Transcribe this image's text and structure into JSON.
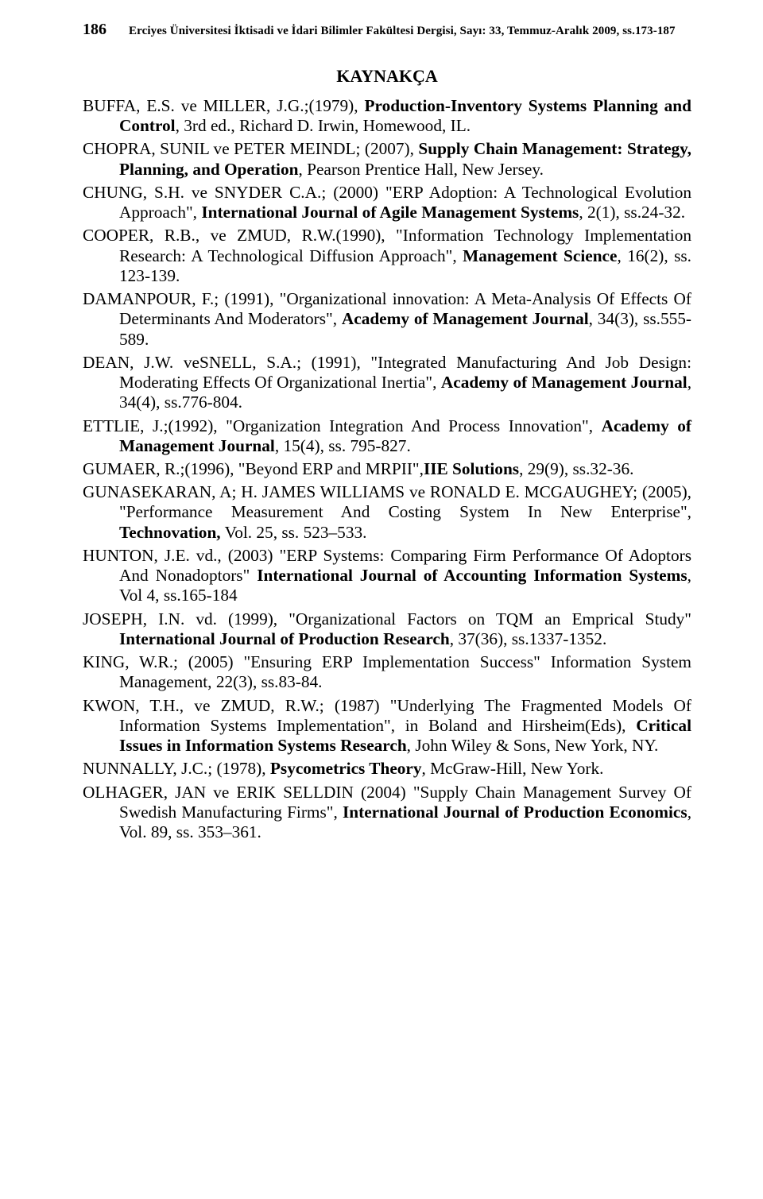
{
  "page_number": "186",
  "journal_header": "Erciyes Üniversitesi İktisadi ve İdari Bilimler Fakültesi Dergisi, Sayı: 33, Temmuz-Aralık 2009, ss.173-187",
  "section_title": "KAYNAKÇA",
  "refs": {
    "r1a": "BUFFA, E.S. ve MILLER, J.G.;(1979), ",
    "r1b": "Production-Inventory Systems Planning and Control",
    "r1c": ", 3rd ed., Richard D. Irwin, Homewood, IL.",
    "r2a": "CHOPRA, SUNIL ve PETER MEINDL; (2007), ",
    "r2b": "Supply Chain Management: Strategy, Planning, and Operation",
    "r2c": ", Pearson Prentice Hall, New Jersey.",
    "r3a": "CHUNG, S.H. ve SNYDER C.A.; (2000) \"ERP Adoption: A Technological Evolution Approach\", ",
    "r3b": "International Journal of Agile Management Systems",
    "r3c": ", 2(1), ss.24-32.",
    "r4a": "COOPER, R.B., ve ZMUD, R.W.(1990), \"Information Technology Implementation Research: A Technological Diffusion Approach\", ",
    "r4b": "Management Science",
    "r4c": ", 16(2), ss. 123-139.",
    "r5a": "DAMANPOUR, F.; (1991), \"Organizational innovation: A Meta-Analysis Of Effects Of Determinants And Moderators\", ",
    "r5b": "Academy of Management Journal",
    "r5c": ", 34(3), ss.555-589.",
    "r6a": "DEAN, J.W. veSNELL, S.A.; (1991), \"Integrated Manufacturing And Job Design: Moderating Effects Of Organizational Inertia\", ",
    "r6b": "Academy of Management Journal",
    "r6c": ", 34(4), ss.776-804.",
    "r7a": "ETTLIE, J.;(1992), \"Organization Integration And Process Innovation\", ",
    "r7b": "Academy of Management Journal",
    "r7c": ", 15(4), ss. 795-827.",
    "r8a": "GUMAER, R.;(1996), \"Beyond ERP and MRPII\",",
    "r8b": "IIE Solutions",
    "r8c": ", 29(9), ss.32-36.",
    "r9a": "GUNASEKARAN, A; H. JAMES WILLIAMS ve RONALD E. MCGAUGHEY; (2005), \"Performance Measurement And Costing System In New Enterprise\", ",
    "r9b": "Technovation,",
    "r9c": " Vol. 25, ss. 523–533.",
    "r10a": "HUNTON, J.E. vd., (2003) \"ERP Systems: Comparing Firm Performance Of Adoptors And Nonadoptors\" ",
    "r10b": "International Journal of Accounting Information Systems",
    "r10c": ", Vol 4, ss.165-184",
    "r11a": "JOSEPH, I.N. vd. (1999), \"Organizational Factors on TQM an Emprical Study\" ",
    "r11b": "International Journal of Production Research",
    "r11c": ", 37(36), ss.1337-1352.",
    "r12a": "KING, W.R.; (2005) \"Ensuring ERP Implementation Success\" Information System Management, 22(3), ss.83-84.",
    "r13a": "KWON, T.H., ve ZMUD, R.W.; (1987) \"Underlying The Fragmented Models Of Information Systems Implementation\", in Boland and Hirsheim(Eds), ",
    "r13b": "Critical Issues in Information Systems Research",
    "r13c": ", John Wiley & Sons, New York, NY.",
    "r14a": "NUNNALLY, J.C.; (1978), ",
    "r14b": "Psycometrics Theory",
    "r14c": ", McGraw-Hill, New York.",
    "r15a": "OLHAGER, JAN ve ERIK SELLDIN (2004) \"Supply Chain Management Survey Of Swedish Manufacturing Firms\", ",
    "r15b": "International Journal of Production Economics",
    "r15c": ", Vol. 89, ss. 353–361."
  }
}
